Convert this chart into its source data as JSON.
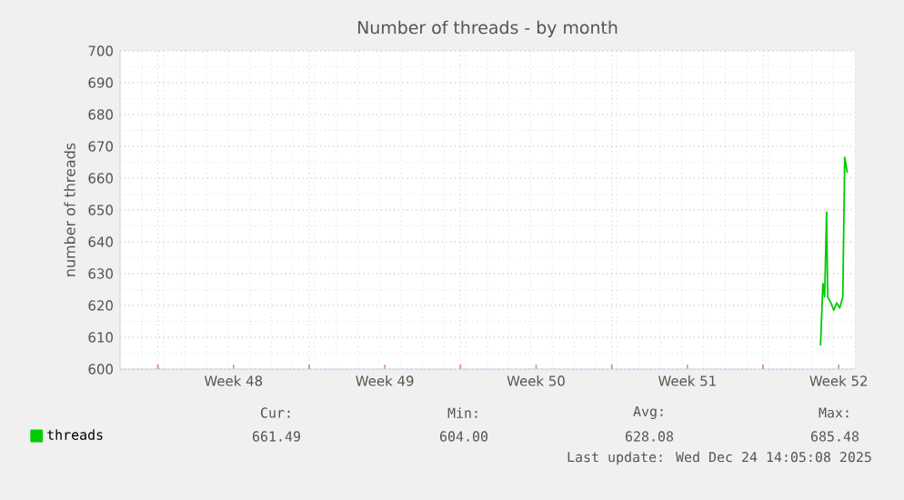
{
  "chart_data": {
    "type": "line",
    "title": "Number of threads - by month",
    "ylabel": "number of threads",
    "x": [
      "2025-12-23T07:50",
      "2025-12-23T10:29",
      "2025-12-23T12:24",
      "2025-12-23T14:34",
      "2025-12-23T15:46",
      "2025-12-23T19:22",
      "2025-12-23T22:29",
      "2025-12-24T01:50",
      "2025-12-24T05:12",
      "2025-12-24T08:34",
      "2025-12-24T10:43",
      "2025-12-24T13:36"
    ],
    "series": [
      {
        "name": "threads",
        "color": "#00cc00",
        "values": [
          607.4,
          626.9,
          622.7,
          649.3,
          622.7,
          620.8,
          618.5,
          620.8,
          619.2,
          622.7,
          666.5,
          661.7
        ]
      }
    ],
    "xlim": [
      "2025-11-20T22:00",
      "2025-12-24T22:00"
    ],
    "xticks": [
      {
        "value": "2025-11-22T16:00",
        "label": null
      },
      {
        "value": "2025-11-26T04:00",
        "label": "Week 48"
      },
      {
        "value": "2025-11-29T16:00",
        "label": null
      },
      {
        "value": "2025-12-03T04:00",
        "label": "Week 49"
      },
      {
        "value": "2025-12-06T16:00",
        "label": null
      },
      {
        "value": "2025-12-10T04:00",
        "label": "Week 50"
      },
      {
        "value": "2025-12-13T16:00",
        "label": null
      },
      {
        "value": "2025-12-17T04:00",
        "label": "Week 51"
      },
      {
        "value": "2025-12-20T16:00",
        "label": null
      },
      {
        "value": "2025-12-24T04:00",
        "label": "Week 52"
      }
    ],
    "ylim": [
      600,
      700
    ],
    "yticks": [
      600,
      610,
      620,
      630,
      640,
      650,
      660,
      670,
      680,
      690,
      700
    ],
    "grid": true,
    "legend": "bottom left",
    "marker": "none",
    "line_style": "solid",
    "annotations": [
      "Cur:",
      "Min:",
      "Avg:",
      "Max:",
      "661.49",
      "604.00",
      "628.08",
      "685.48",
      "Last update: Wed Dec 24 14:05:08 2025"
    ]
  }
}
